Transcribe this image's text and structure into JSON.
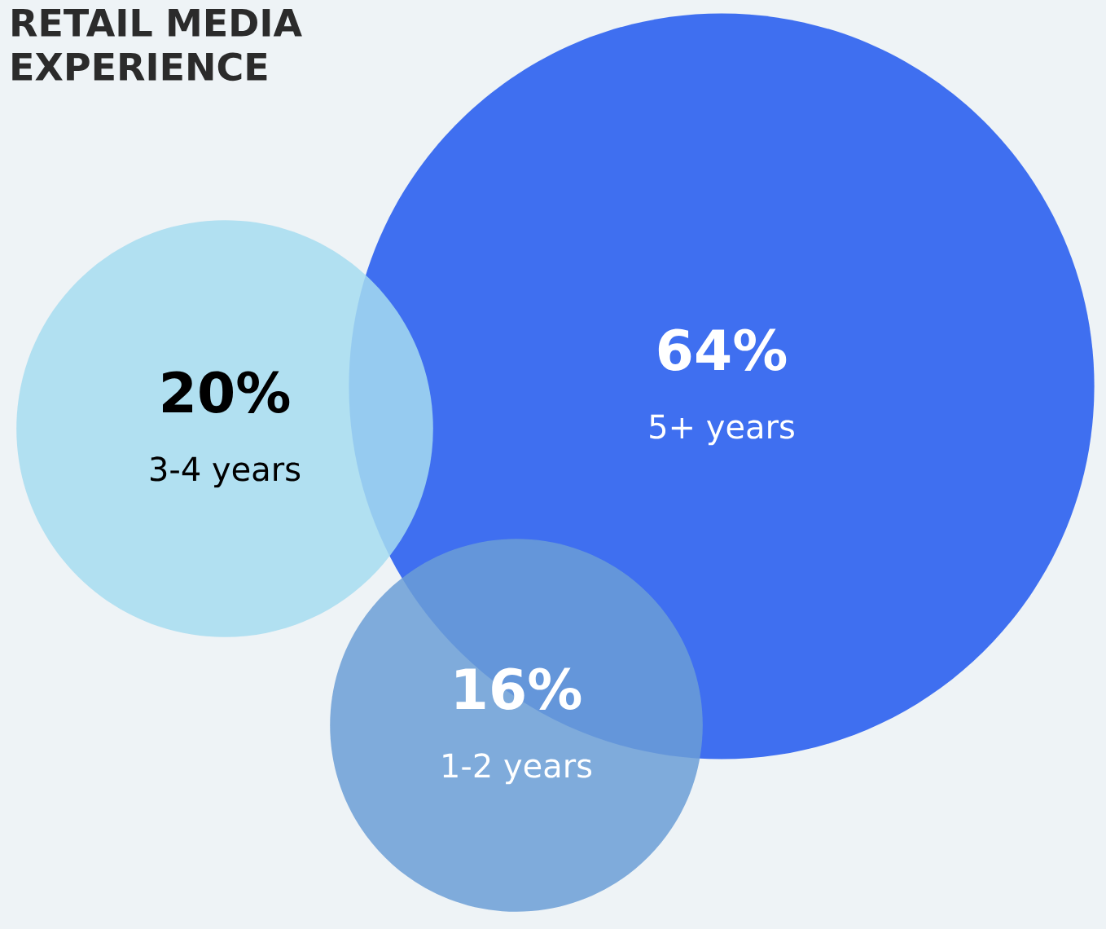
{
  "chart_data": {
    "type": "other",
    "title": "RETAIL MEDIA EXPERIENCE",
    "categories": [
      "5+ years",
      "3-4 years",
      "1-2 years"
    ],
    "values": [
      64,
      20,
      16
    ],
    "value_labels": [
      "64%",
      "20%",
      "16%"
    ],
    "colors": [
      "#3f6ff0",
      "#a6dcf0",
      "#6b9ed6"
    ]
  }
}
